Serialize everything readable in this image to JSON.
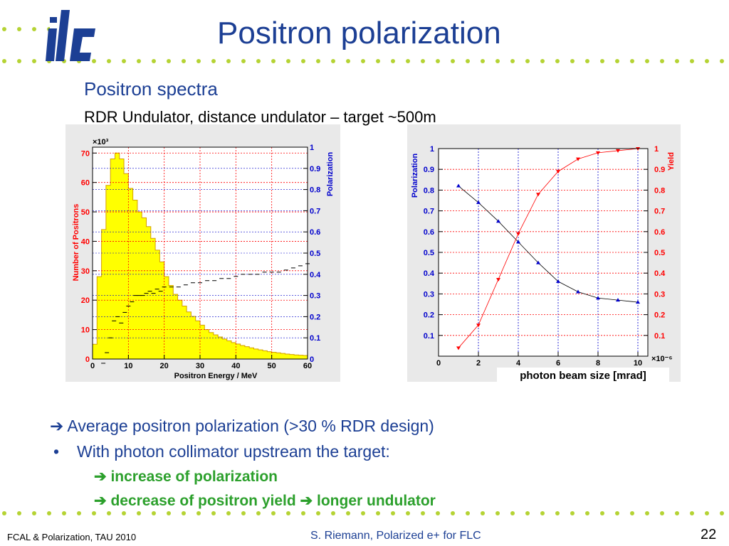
{
  "slide": {
    "title": "Positron polarization",
    "subtitle": "Positron spectra",
    "subline": "RDR Undulator,  distance undulator – target  ~500m",
    "bullets": {
      "b1": "Average positron polarization  (>30 % RDR design)",
      "b2": "With photon collimator upstream the target:",
      "b3": "increase of polarization",
      "b4a": "decrease of positron yield",
      "b4b": "longer undulator"
    },
    "arrow_glyph": "➔",
    "bullet_glyph": "•",
    "footer_left": "FCAL & Polarization, TAU 2010",
    "footer_center": "S. Riemann, Polarized e+ for FLC",
    "page_number": "22",
    "logo_text": "ilc",
    "colors": {
      "title": "#1c3f94",
      "green": "#2ca02c",
      "dots": "#b5d334",
      "red_axis": "#ff0000",
      "blue_axis": "#0000cc",
      "hist_fill": "#ffff00"
    }
  },
  "chart_data": [
    {
      "type": "bar",
      "name": "positron-spectrum",
      "xlabel": "Positron Energy / MeV",
      "ylabel": "Number of Positrons",
      "ylabel2": "Polarization",
      "y_multiplier": "×10³",
      "xlim": [
        0,
        60
      ],
      "ylim": [
        0,
        72
      ],
      "y2lim": [
        0,
        1
      ],
      "xticks": [
        0,
        10,
        20,
        30,
        40,
        50,
        60
      ],
      "yticks": [
        0,
        10,
        20,
        30,
        40,
        50,
        60,
        70
      ],
      "y2ticks": [
        0,
        0.1,
        0.2,
        0.3,
        0.4,
        0.5,
        0.6,
        0.7,
        0.8,
        0.9,
        1
      ],
      "hist": {
        "bin_width": 1.25,
        "values": [
          5,
          28,
          44,
          59,
          68,
          70,
          68,
          63,
          58,
          54,
          50,
          48,
          45,
          41,
          37,
          33,
          28,
          25,
          22,
          20,
          18,
          16,
          14.5,
          13,
          11.5,
          10,
          9,
          8.2,
          7.5,
          6.8,
          6.2,
          5.6,
          5.1,
          4.6,
          4.2,
          3.8,
          3.4,
          3.1,
          2.8,
          2.5,
          2.3,
          2.1,
          1.9,
          1.7,
          1.55,
          1.4,
          1.3,
          1.2
        ]
      },
      "polarization": {
        "x": [
          3,
          4,
          5,
          6,
          7,
          8,
          9,
          10,
          11,
          12,
          13,
          14,
          15,
          16,
          17,
          18,
          19,
          20,
          22,
          24,
          26,
          28,
          30,
          32,
          34,
          36,
          38,
          40,
          42,
          44,
          46,
          48,
          50,
          52,
          54,
          56,
          58,
          60
        ],
        "y": [
          -0.02,
          0.03,
          0.1,
          0.18,
          0.2,
          0.17,
          0.22,
          0.25,
          0.27,
          0.3,
          0.3,
          0.3,
          0.31,
          0.32,
          0.31,
          0.33,
          0.32,
          0.34,
          0.34,
          0.34,
          0.35,
          0.36,
          0.36,
          0.37,
          0.37,
          0.38,
          0.38,
          0.39,
          0.4,
          0.4,
          0.4,
          0.41,
          0.41,
          0.41,
          0.42,
          0.43,
          0.44,
          0.45
        ]
      }
    },
    {
      "type": "line",
      "name": "polarization-yield-vs-beam-size",
      "xlabel": "photon beam size [mrad]",
      "ylabel": "Polarization",
      "ylabel2": "Yield",
      "y2_multiplier": "×10⁻⁶",
      "xlim": [
        0,
        10.5
      ],
      "ylim": [
        0,
        1
      ],
      "y2lim": [
        0,
        1
      ],
      "xticks": [
        0,
        2,
        4,
        6,
        8,
        10
      ],
      "yticks": [
        0.1,
        0.2,
        0.3,
        0.4,
        0.5,
        0.6,
        0.7,
        0.8,
        0.9,
        1
      ],
      "y2ticks": [
        0.1,
        0.2,
        0.3,
        0.4,
        0.5,
        0.6,
        0.7,
        0.8,
        0.9,
        1
      ],
      "series": [
        {
          "name": "Polarization",
          "color": "#0000cc",
          "x": [
            1,
            2,
            3,
            4,
            5,
            6,
            7,
            8,
            9,
            10
          ],
          "y": [
            0.82,
            0.74,
            0.65,
            0.55,
            0.45,
            0.36,
            0.31,
            0.28,
            0.27,
            0.26
          ]
        },
        {
          "name": "Yield",
          "color": "#ff0000",
          "x": [
            1,
            2,
            3,
            4,
            5,
            6,
            7,
            8,
            9,
            10
          ],
          "y": [
            0.04,
            0.15,
            0.37,
            0.59,
            0.78,
            0.89,
            0.95,
            0.98,
            0.99,
            1.0
          ]
        }
      ]
    }
  ]
}
